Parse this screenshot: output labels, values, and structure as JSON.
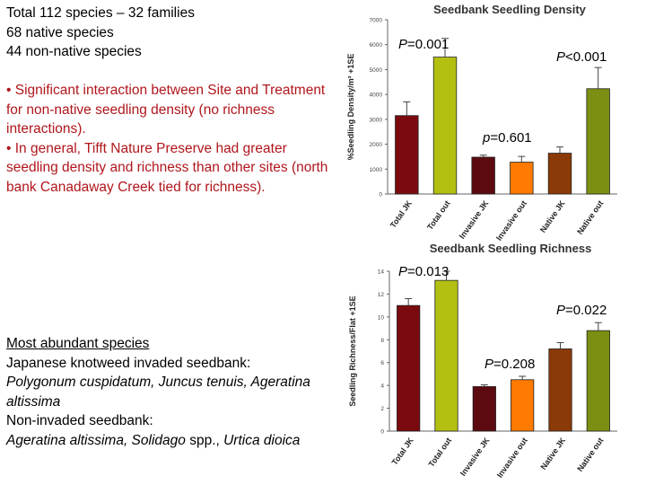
{
  "summary": {
    "line1": "Total 112 species – 32 families",
    "line2": "68 native species",
    "line3": "44 non-native species"
  },
  "bullets": {
    "b1": "• Significant interaction between Site and Treatment for non-native  seedling density (no richness interactions).",
    "b2": "• In general, Tifft Nature Preserve had greater seedling density and richness than other  sites (north bank Canadaway Creek tied for richness)."
  },
  "abundant": {
    "heading": "Most abundant species",
    "invaded_label": "Japanese knotweed invaded seedbank:",
    "invaded_species": "Polygonum cuspidatum, Juncus tenuis, Ageratina altissima",
    "noninvaded_label": "Non-invaded seedbank:",
    "noninvaded_species_a": "Ageratina altissima, Solidago",
    "noninvaded_species_b": " spp., ",
    "noninvaded_species_c": "Urtica dioica"
  },
  "colors": {
    "dark_red": "#7b0a0e",
    "yellow_green": "#b3c011",
    "maroon": "#5c0a0f",
    "orange": "#ff7a00",
    "brown": "#8a3a06",
    "olive": "#7c8f13",
    "text_red": "#b0161c"
  },
  "chart_data": [
    {
      "type": "bar",
      "title": "Seedbank Seedling Density",
      "ylabel": "%Seedling Density/m² +1SE",
      "categories": [
        "Total JK",
        "Total out",
        "Invasive JK",
        "Invasive out",
        "Native JK",
        "Native out"
      ],
      "values": [
        3150,
        5500,
        1480,
        1280,
        1640,
        4230
      ],
      "errors": [
        550,
        750,
        80,
        230,
        250,
        850
      ],
      "bar_colors": [
        "#7b0a0e",
        "#b3c011",
        "#5c0a0f",
        "#ff7a00",
        "#8a3a06",
        "#7c8f13"
      ],
      "ylim": [
        0,
        7000
      ],
      "yticks": [
        0,
        1000,
        2000,
        3000,
        4000,
        5000,
        6000,
        7000
      ],
      "annotations": [
        {
          "pvar": "P",
          "text": "=0.001"
        },
        {
          "pvar": "P",
          "text": "<0.001"
        },
        {
          "pvar": "p",
          "text": "=0.601"
        }
      ]
    },
    {
      "type": "bar",
      "title": "Seedbank Seedling Richness",
      "ylabel": "Seedling Richness/Flat +1SE",
      "categories": [
        "Total JK",
        "Total out",
        "Invasive JK",
        "Invasive out",
        "Native JK",
        "Native out"
      ],
      "values": [
        11.0,
        13.2,
        3.9,
        4.5,
        7.2,
        8.8
      ],
      "errors": [
        0.6,
        0.8,
        0.15,
        0.3,
        0.55,
        0.7
      ],
      "bar_colors": [
        "#7b0a0e",
        "#b3c011",
        "#5c0a0f",
        "#ff7a00",
        "#8a3a06",
        "#7c8f13"
      ],
      "ylim": [
        0,
        14
      ],
      "yticks": [
        0,
        2,
        4,
        6,
        8,
        10,
        12,
        14
      ],
      "annotations": [
        {
          "pvar": "P",
          "text": "=0.013"
        },
        {
          "pvar": "P",
          "text": "=0.022"
        },
        {
          "pvar": "P",
          "text": "=0.208"
        }
      ]
    }
  ]
}
